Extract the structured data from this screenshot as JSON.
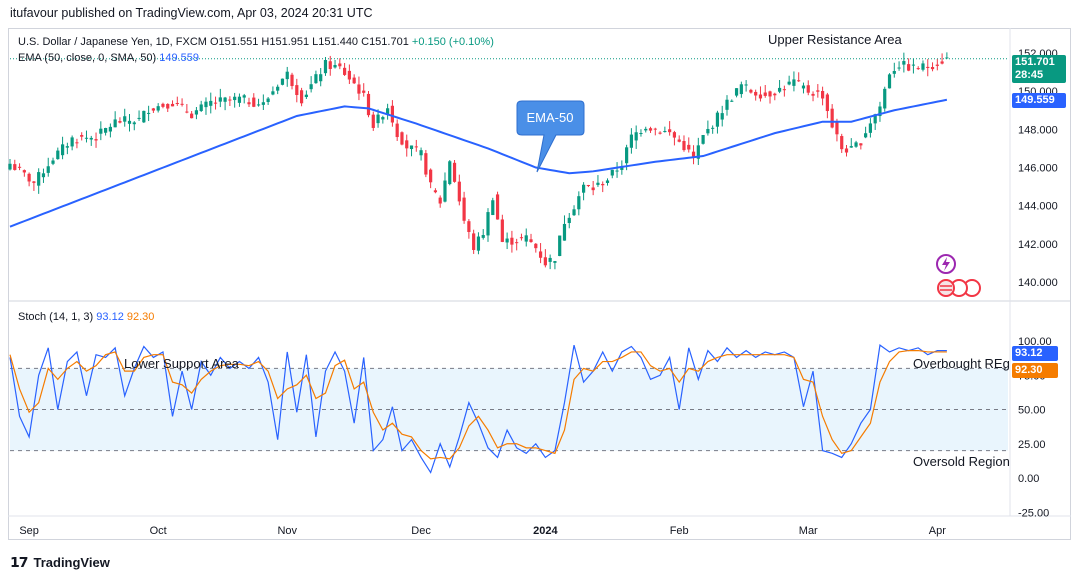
{
  "header": "itufavour published on TradingView.com, Apr 03, 2024 20:31 UTC",
  "symbol_line": {
    "name": "U.S. Dollar / Japanese Yen, 1D, FXCM",
    "open": "O151.551",
    "high": "H151.951",
    "low": "L151.440",
    "close": "C151.701",
    "change": "+0.150 (+0.10%)"
  },
  "ema_line": {
    "label": "EMA (50, close, 0, SMA, 50)",
    "value": "149.559"
  },
  "stoch_line": {
    "label": "Stoch (14, 1, 3)",
    "k": "93.12",
    "d": "92.30"
  },
  "annotations": {
    "upper_resistance": "Upper Resistance Area",
    "ema_callout": "EMA-50",
    "lower_support": "Lower Support Area",
    "overbought": "Overbought REg",
    "oversold": "Oversold Region"
  },
  "price_tags": {
    "last_price": "151.701",
    "countdown": "28:45",
    "ema_price": "149.559",
    "stoch_k": "93.12",
    "stoch_d": "92.30"
  },
  "footer": {
    "brand": "TradingView"
  },
  "colors": {
    "up": "#089981",
    "down": "#f23645",
    "ema": "#2962ff",
    "stoch_k": "#2962ff",
    "stoch_d": "#f57c00",
    "band_fill": "#e3f2fd",
    "callout": "#4a8fe7"
  },
  "chart_data": [
    {
      "type": "candlestick",
      "title": "U.S. Dollar / Japanese Yen, 1D, FXCM",
      "x_tick_labels": [
        "Sep",
        "Oct",
        "Nov",
        "Dec",
        "2024",
        "Feb",
        "Mar",
        "Apr"
      ],
      "y_tick_labels": [
        "140.000",
        "142.000",
        "144.000",
        "146.000",
        "148.000",
        "150.000",
        "152.000"
      ],
      "ylim": [
        139.0,
        153.0
      ],
      "price_path": [
        [
          0,
          146.2
        ],
        [
          5,
          145.2
        ],
        [
          9,
          146.5
        ],
        [
          13,
          147.5
        ],
        [
          18,
          147.6
        ],
        [
          22,
          148.4
        ],
        [
          27,
          148.5
        ],
        [
          29,
          149.1
        ],
        [
          34,
          149.4
        ],
        [
          38,
          148.8
        ],
        [
          42,
          149.4
        ],
        [
          48,
          149.6
        ],
        [
          53,
          149.3
        ],
        [
          56,
          150.4
        ],
        [
          58,
          150.9
        ],
        [
          61,
          149.6
        ],
        [
          63,
          150.3
        ],
        [
          66,
          151.4
        ],
        [
          69,
          151.2
        ],
        [
          72,
          150.4
        ],
        [
          74,
          149.7
        ],
        [
          76,
          148.2
        ],
        [
          79,
          149.2
        ],
        [
          81,
          147.8
        ],
        [
          83,
          147.1
        ],
        [
          86,
          146.7
        ],
        [
          88,
          145.0
        ],
        [
          90,
          144.2
        ],
        [
          92,
          146.4
        ],
        [
          95,
          143.2
        ],
        [
          97,
          141.8
        ],
        [
          99,
          142.6
        ],
        [
          101,
          144.5
        ],
        [
          103,
          142.1
        ],
        [
          106,
          142.2
        ],
        [
          108,
          142.3
        ],
        [
          110,
          141.8
        ],
        [
          112,
          141.0
        ],
        [
          114,
          141.3
        ],
        [
          116,
          143.2
        ],
        [
          118,
          144.0
        ],
        [
          120,
          145.0
        ],
        [
          122,
          144.9
        ],
        [
          125,
          145.4
        ],
        [
          128,
          146.2
        ],
        [
          130,
          147.6
        ],
        [
          133,
          148.2
        ],
        [
          135,
          148.0
        ],
        [
          138,
          147.8
        ],
        [
          141,
          147.1
        ],
        [
          143,
          146.5
        ],
        [
          145,
          147.6
        ],
        [
          147,
          148.3
        ],
        [
          150,
          149.4
        ],
        [
          153,
          150.3
        ],
        [
          155,
          150.0
        ],
        [
          158,
          149.8
        ],
        [
          161,
          150.1
        ],
        [
          164,
          150.5
        ],
        [
          167,
          150.0
        ],
        [
          170,
          149.8
        ],
        [
          172,
          148.2
        ],
        [
          174,
          147.0
        ],
        [
          176,
          146.9
        ],
        [
          178,
          147.4
        ],
        [
          180,
          148.4
        ],
        [
          182,
          149.2
        ],
        [
          184,
          151.0
        ],
        [
          186,
          151.4
        ],
        [
          189,
          151.2
        ],
        [
          192,
          151.3
        ],
        [
          194,
          151.5
        ],
        [
          196,
          151.7
        ]
      ],
      "ema50_path": [
        [
          0,
          142.9
        ],
        [
          30,
          145.8
        ],
        [
          60,
          148.7
        ],
        [
          70,
          149.2
        ],
        [
          75,
          149.1
        ],
        [
          85,
          148.3
        ],
        [
          100,
          147.0
        ],
        [
          110,
          146.0
        ],
        [
          117,
          145.7
        ],
        [
          122,
          145.8
        ],
        [
          135,
          146.3
        ],
        [
          145,
          146.6
        ],
        [
          160,
          147.8
        ],
        [
          170,
          148.4
        ],
        [
          176,
          148.4
        ],
        [
          185,
          149.0
        ],
        [
          197,
          149.6
        ]
      ],
      "last_price": 151.701,
      "ema50_last": 149.559
    },
    {
      "type": "line",
      "title": "Stoch (14, 1, 3)",
      "y_tick_labels": [
        "-25.00",
        "0.00",
        "25.00",
        "50.00",
        "75.00",
        "100.00"
      ],
      "ylim": [
        -30,
        105
      ],
      "band": [
        20,
        80
      ],
      "series": [
        {
          "name": "%K",
          "values": [
            [
              0,
              88
            ],
            [
              2,
              45
            ],
            [
              4,
              30
            ],
            [
              6,
              75
            ],
            [
              8,
              95
            ],
            [
              10,
              50
            ],
            [
              12,
              85
            ],
            [
              14,
              92
            ],
            [
              16,
              60
            ],
            [
              18,
              90
            ],
            [
              20,
              88
            ],
            [
              22,
              95
            ],
            [
              24,
              60
            ],
            [
              26,
              80
            ],
            [
              28,
              96
            ],
            [
              30,
              88
            ],
            [
              32,
              92
            ],
            [
              34,
              45
            ],
            [
              36,
              78
            ],
            [
              38,
              50
            ],
            [
              40,
              85
            ],
            [
              42,
              75
            ],
            [
              44,
              88
            ],
            [
              46,
              80
            ],
            [
              48,
              85
            ],
            [
              50,
              80
            ],
            [
              52,
              88
            ],
            [
              54,
              70
            ],
            [
              56,
              28
            ],
            [
              58,
              92
            ],
            [
              60,
              48
            ],
            [
              62,
              90
            ],
            [
              64,
              30
            ],
            [
              66,
              78
            ],
            [
              68,
              92
            ],
            [
              70,
              78
            ],
            [
              72,
              40
            ],
            [
              74,
              88
            ],
            [
              76,
              20
            ],
            [
              78,
              28
            ],
            [
              80,
              52
            ],
            [
              82,
              20
            ],
            [
              84,
              28
            ],
            [
              86,
              15
            ],
            [
              88,
              4
            ],
            [
              90,
              25
            ],
            [
              92,
              8
            ],
            [
              94,
              30
            ],
            [
              96,
              55
            ],
            [
              98,
              40
            ],
            [
              100,
              22
            ],
            [
              102,
              15
            ],
            [
              104,
              35
            ],
            [
              106,
              22
            ],
            [
              108,
              18
            ],
            [
              110,
              25
            ],
            [
              112,
              15
            ],
            [
              114,
              20
            ],
            [
              116,
              55
            ],
            [
              118,
              97
            ],
            [
              120,
              70
            ],
            [
              122,
              78
            ],
            [
              124,
              92
            ],
            [
              126,
              78
            ],
            [
              128,
              92
            ],
            [
              130,
              96
            ],
            [
              132,
              88
            ],
            [
              134,
              72
            ],
            [
              136,
              75
            ],
            [
              138,
              88
            ],
            [
              140,
              50
            ],
            [
              142,
              95
            ],
            [
              144,
              72
            ],
            [
              146,
              93
            ],
            [
              148,
              85
            ],
            [
              150,
              95
            ],
            [
              152,
              88
            ],
            [
              154,
              93
            ],
            [
              156,
              88
            ],
            [
              158,
              92
            ],
            [
              160,
              90
            ],
            [
              162,
              92
            ],
            [
              164,
              88
            ],
            [
              166,
              52
            ],
            [
              168,
              78
            ],
            [
              170,
              20
            ],
            [
              172,
              18
            ],
            [
              174,
              15
            ],
            [
              176,
              25
            ],
            [
              178,
              40
            ],
            [
              180,
              50
            ],
            [
              182,
              97
            ],
            [
              184,
              92
            ],
            [
              186,
              95
            ],
            [
              188,
              93
            ],
            [
              190,
              95
            ],
            [
              192,
              90
            ],
            [
              194,
              93
            ],
            [
              196,
              93
            ]
          ]
        },
        {
          "name": "%D",
          "values": [
            [
              0,
              90
            ],
            [
              2,
              65
            ],
            [
              4,
              48
            ],
            [
              6,
              55
            ],
            [
              8,
              80
            ],
            [
              10,
              72
            ],
            [
              12,
              80
            ],
            [
              14,
              85
            ],
            [
              16,
              78
            ],
            [
              18,
              82
            ],
            [
              20,
              90
            ],
            [
              22,
              92
            ],
            [
              24,
              78
            ],
            [
              26,
              78
            ],
            [
              28,
              88
            ],
            [
              30,
              90
            ],
            [
              32,
              90
            ],
            [
              34,
              70
            ],
            [
              36,
              68
            ],
            [
              38,
              62
            ],
            [
              40,
              72
            ],
            [
              42,
              78
            ],
            [
              44,
              82
            ],
            [
              46,
              83
            ],
            [
              48,
              83
            ],
            [
              50,
              82
            ],
            [
              52,
              85
            ],
            [
              54,
              78
            ],
            [
              56,
              58
            ],
            [
              58,
              65
            ],
            [
              60,
              68
            ],
            [
              62,
              75
            ],
            [
              64,
              58
            ],
            [
              66,
              62
            ],
            [
              68,
              82
            ],
            [
              70,
              86
            ],
            [
              72,
              65
            ],
            [
              74,
              70
            ],
            [
              76,
              48
            ],
            [
              78,
              35
            ],
            [
              80,
              40
            ],
            [
              82,
              32
            ],
            [
              84,
              30
            ],
            [
              86,
              20
            ],
            [
              88,
              14
            ],
            [
              90,
              15
            ],
            [
              92,
              14
            ],
            [
              94,
              22
            ],
            [
              96,
              38
            ],
            [
              98,
              45
            ],
            [
              100,
              35
            ],
            [
              102,
              22
            ],
            [
              104,
              25
            ],
            [
              106,
              25
            ],
            [
              108,
              22
            ],
            [
              110,
              22
            ],
            [
              112,
              20
            ],
            [
              114,
              18
            ],
            [
              116,
              35
            ],
            [
              118,
              72
            ],
            [
              120,
              80
            ],
            [
              122,
              78
            ],
            [
              124,
              85
            ],
            [
              126,
              85
            ],
            [
              128,
              88
            ],
            [
              130,
              92
            ],
            [
              132,
              92
            ],
            [
              134,
              82
            ],
            [
              136,
              78
            ],
            [
              138,
              80
            ],
            [
              140,
              70
            ],
            [
              142,
              80
            ],
            [
              144,
              78
            ],
            [
              146,
              85
            ],
            [
              148,
              88
            ],
            [
              150,
              90
            ],
            [
              152,
              90
            ],
            [
              154,
              90
            ],
            [
              156,
              90
            ],
            [
              158,
              90
            ],
            [
              160,
              90
            ],
            [
              162,
              90
            ],
            [
              164,
              88
            ],
            [
              166,
              72
            ],
            [
              168,
              70
            ],
            [
              170,
              45
            ],
            [
              172,
              28
            ],
            [
              174,
              18
            ],
            [
              176,
              20
            ],
            [
              178,
              30
            ],
            [
              180,
              40
            ],
            [
              182,
              70
            ],
            [
              184,
              85
            ],
            [
              186,
              92
            ],
            [
              188,
              93
            ],
            [
              190,
              93
            ],
            [
              192,
              92
            ],
            [
              194,
              92
            ],
            [
              196,
              92
            ]
          ]
        }
      ],
      "last_k": 93.12,
      "last_d": 92.3
    }
  ]
}
